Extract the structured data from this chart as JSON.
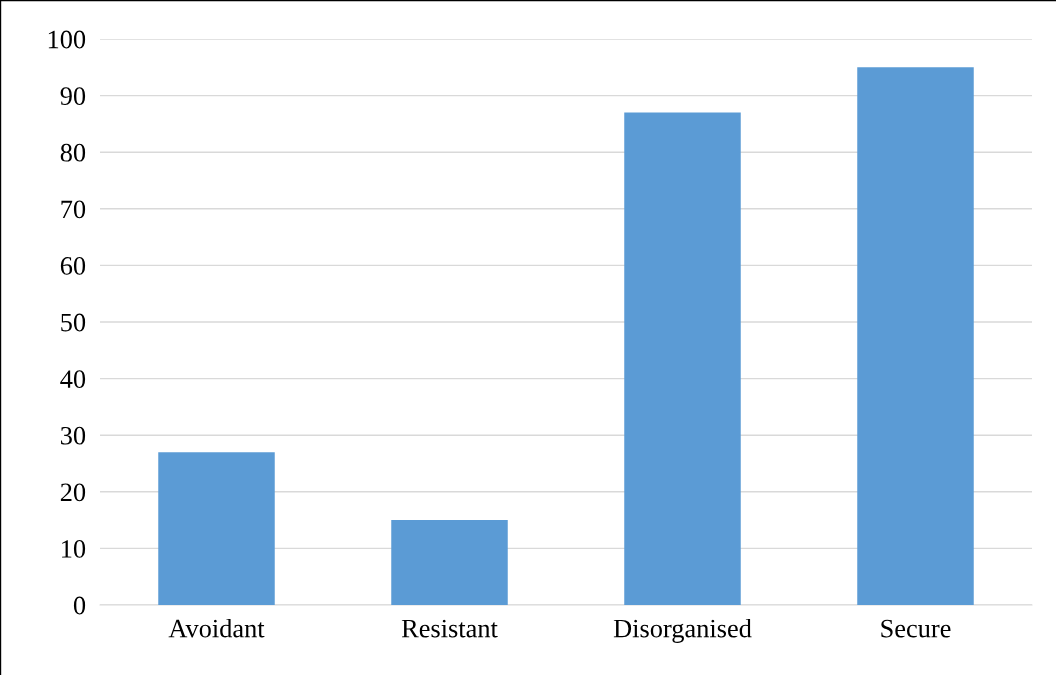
{
  "chart_data": {
    "type": "bar",
    "categories": [
      "Avoidant",
      "Resistant",
      "Disorganised",
      "Secure"
    ],
    "values": [
      27,
      15,
      87,
      95
    ],
    "color": "#5b9bd5",
    "ylim": [
      0,
      100
    ],
    "yticks": [
      0,
      10,
      20,
      30,
      40,
      50,
      60,
      70,
      80,
      90,
      100
    ],
    "grid": "y"
  }
}
